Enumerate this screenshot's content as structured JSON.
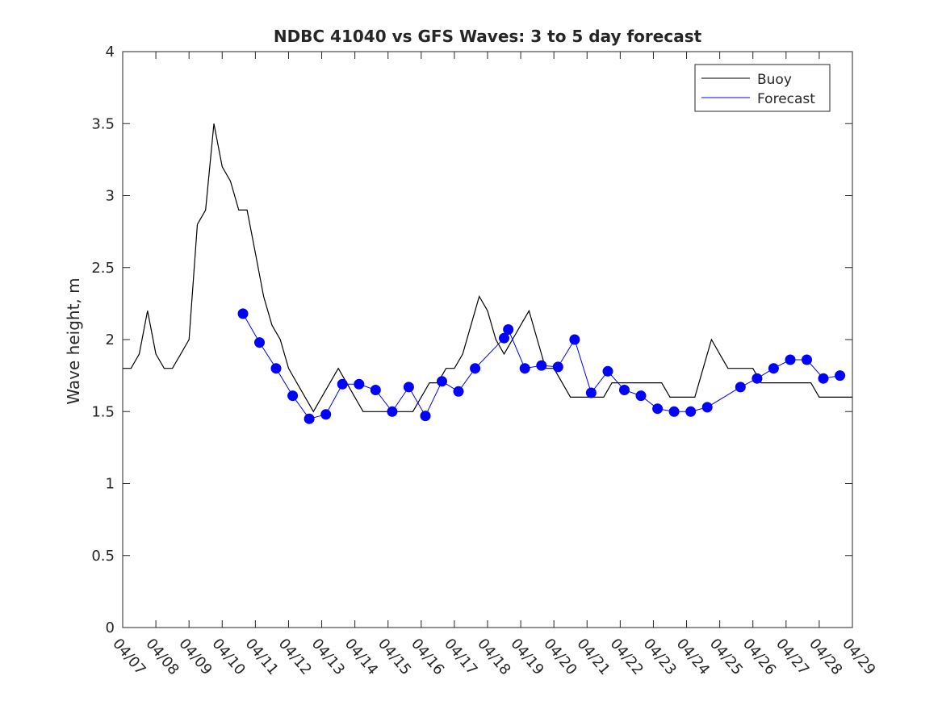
{
  "chart_data": {
    "type": "line",
    "title": "NDBC 41040 vs GFS Waves: 3 to 5 day forecast",
    "xlabel": "",
    "ylabel": "Wave height, m",
    "xlim": [
      "2018-04-07",
      "2018-04-29"
    ],
    "ylim": [
      0,
      4
    ],
    "x_tick_labels": [
      "04/07",
      "04/08",
      "04/09",
      "04/10",
      "04/11",
      "04/12",
      "04/13",
      "04/14",
      "04/15",
      "04/16",
      "04/17",
      "04/18",
      "04/19",
      "04/20",
      "04/21",
      "04/22",
      "04/23",
      "04/24",
      "04/25",
      "04/26",
      "04/27",
      "04/28",
      "04/29"
    ],
    "y_tick_labels": [
      "0",
      "0.5",
      "1",
      "1.5",
      "2",
      "2.5",
      "3",
      "3.5",
      "4"
    ],
    "legend": {
      "position": "top-right",
      "entries": [
        "Buoy",
        "Forecast"
      ]
    },
    "grid": false,
    "colors": {
      "buoy": "#000000",
      "forecast": "#0000ff",
      "axes": "#262626"
    },
    "series": [
      {
        "name": "Buoy",
        "color": "#000000",
        "x": [
          "2018-04-07 00:00",
          "2018-04-07 06:00",
          "2018-04-07 12:00",
          "2018-04-07 18:00",
          "2018-04-08 00:00",
          "2018-04-08 06:00",
          "2018-04-08 12:00",
          "2018-04-08 18:00",
          "2018-04-09 00:00",
          "2018-04-09 06:00",
          "2018-04-09 12:00",
          "2018-04-09 18:00",
          "2018-04-10 00:00",
          "2018-04-10 06:00",
          "2018-04-10 12:00",
          "2018-04-10 18:00",
          "2018-04-11 00:00",
          "2018-04-11 06:00",
          "2018-04-11 12:00",
          "2018-04-11 18:00",
          "2018-04-12 00:00",
          "2018-04-12 06:00",
          "2018-04-12 12:00",
          "2018-04-12 18:00",
          "2018-04-13 00:00",
          "2018-04-13 06:00",
          "2018-04-13 12:00",
          "2018-04-13 18:00",
          "2018-04-14 00:00",
          "2018-04-14 06:00",
          "2018-04-14 12:00",
          "2018-04-14 18:00",
          "2018-04-15 00:00",
          "2018-04-15 06:00",
          "2018-04-15 12:00",
          "2018-04-15 18:00",
          "2018-04-16 00:00",
          "2018-04-16 06:00",
          "2018-04-16 12:00",
          "2018-04-16 18:00",
          "2018-04-17 00:00",
          "2018-04-17 06:00",
          "2018-04-17 12:00",
          "2018-04-17 18:00",
          "2018-04-18 00:00",
          "2018-04-18 06:00",
          "2018-04-18 12:00",
          "2018-04-18 18:00",
          "2018-04-19 00:00",
          "2018-04-19 06:00",
          "2018-04-19 12:00",
          "2018-04-19 18:00",
          "2018-04-20 00:00",
          "2018-04-20 06:00",
          "2018-04-20 12:00",
          "2018-04-20 18:00",
          "2018-04-21 00:00",
          "2018-04-21 06:00",
          "2018-04-21 12:00",
          "2018-04-21 18:00",
          "2018-04-22 00:00",
          "2018-04-22 06:00",
          "2018-04-22 12:00",
          "2018-04-22 18:00",
          "2018-04-23 00:00",
          "2018-04-23 06:00",
          "2018-04-23 12:00",
          "2018-04-23 18:00",
          "2018-04-24 00:00",
          "2018-04-24 06:00",
          "2018-04-24 12:00",
          "2018-04-24 18:00",
          "2018-04-25 00:00",
          "2018-04-25 06:00",
          "2018-04-25 12:00",
          "2018-04-25 18:00",
          "2018-04-26 00:00",
          "2018-04-26 06:00",
          "2018-04-26 12:00",
          "2018-04-26 18:00",
          "2018-04-27 00:00",
          "2018-04-27 06:00",
          "2018-04-27 12:00",
          "2018-04-27 18:00",
          "2018-04-28 00:00",
          "2018-04-28 06:00",
          "2018-04-28 12:00",
          "2018-04-28 18:00",
          "2018-04-29 00:00"
        ],
        "y": [
          1.8,
          1.8,
          1.9,
          2.2,
          1.9,
          1.8,
          1.8,
          1.9,
          2.0,
          2.8,
          2.9,
          3.5,
          3.2,
          3.1,
          2.9,
          2.9,
          2.6,
          2.3,
          2.1,
          2.0,
          1.8,
          1.7,
          1.6,
          1.5,
          1.6,
          1.7,
          1.8,
          1.7,
          1.6,
          1.5,
          1.5,
          1.5,
          1.5,
          1.5,
          1.5,
          1.5,
          1.6,
          1.7,
          1.7,
          1.8,
          1.8,
          1.9,
          2.1,
          2.3,
          2.2,
          2.0,
          1.9,
          2.0,
          2.1,
          2.2,
          2.0,
          1.8,
          1.8,
          1.7,
          1.6,
          1.6,
          1.6,
          1.6,
          1.6,
          1.7,
          1.7,
          1.7,
          1.7,
          1.7,
          1.7,
          1.7,
          1.6,
          1.6,
          1.6,
          1.6,
          1.8,
          2.0,
          1.9,
          1.8,
          1.8,
          1.8,
          1.8,
          1.7,
          1.7,
          1.7,
          1.7,
          1.7,
          1.7,
          1.7,
          1.6,
          1.6,
          1.6,
          1.6,
          1.6
        ]
      },
      {
        "name": "Forecast",
        "color": "#0000ff",
        "markers_x": [
          "2018-04-10 15:00",
          "2018-04-11 03:00",
          "2018-04-11 15:00",
          "2018-04-12 03:00",
          "2018-04-12 15:00",
          "2018-04-13 03:00",
          "2018-04-13 15:00",
          "2018-04-14 03:00",
          "2018-04-14 15:00",
          "2018-04-15 03:00",
          "2018-04-15 15:00",
          "2018-04-16 03:00",
          "2018-04-16 15:00",
          "2018-04-17 03:00",
          "2018-04-17 15:00",
          "2018-04-18 12:00",
          "2018-04-18 15:00",
          "2018-04-19 03:00",
          "2018-04-19 15:00",
          "2018-04-20 03:00",
          "2018-04-20 15:00",
          "2018-04-21 03:00",
          "2018-04-21 15:00",
          "2018-04-22 03:00",
          "2018-04-22 15:00",
          "2018-04-23 03:00",
          "2018-04-23 15:00",
          "2018-04-24 03:00",
          "2018-04-24 15:00",
          "2018-04-25 15:00",
          "2018-04-26 03:00",
          "2018-04-26 15:00",
          "2018-04-27 03:00",
          "2018-04-27 15:00",
          "2018-04-28 03:00",
          "2018-04-28 15:00"
        ],
        "markers_y": [
          2.18,
          1.98,
          1.8,
          1.61,
          1.45,
          1.48,
          1.69,
          1.69,
          1.65,
          1.5,
          1.67,
          1.47,
          1.71,
          1.64,
          1.8,
          2.01,
          2.07,
          1.8,
          1.82,
          1.81,
          2.0,
          1.63,
          1.78,
          1.65,
          1.61,
          1.52,
          1.5,
          1.5,
          1.53,
          1.67,
          1.73,
          1.8,
          1.86,
          1.86,
          1.73,
          1.75
        ]
      }
    ]
  }
}
